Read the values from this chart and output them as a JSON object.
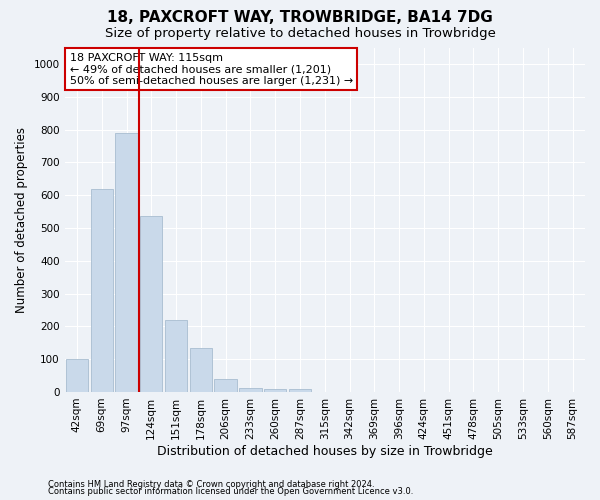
{
  "title1": "18, PAXCROFT WAY, TROWBRIDGE, BA14 7DG",
  "title2": "Size of property relative to detached houses in Trowbridge",
  "xlabel": "Distribution of detached houses by size in Trowbridge",
  "ylabel": "Number of detached properties",
  "bar_color": "#c9d9ea",
  "bar_edge_color": "#a8bdd0",
  "categories": [
    "42sqm",
    "69sqm",
    "97sqm",
    "124sqm",
    "151sqm",
    "178sqm",
    "206sqm",
    "233sqm",
    "260sqm",
    "287sqm",
    "315sqm",
    "342sqm",
    "369sqm",
    "396sqm",
    "424sqm",
    "451sqm",
    "478sqm",
    "505sqm",
    "533sqm",
    "560sqm",
    "587sqm"
  ],
  "values": [
    100,
    620,
    790,
    535,
    220,
    135,
    40,
    13,
    8,
    10,
    0,
    0,
    0,
    0,
    0,
    0,
    0,
    0,
    0,
    0,
    0
  ],
  "vline_x": 2.5,
  "vline_color": "#cc0000",
  "annotation_line1": "18 PAXCROFT WAY: 115sqm",
  "annotation_line2": "← 49% of detached houses are smaller (1,201)",
  "annotation_line3": "50% of semi-detached houses are larger (1,231) →",
  "annotation_box_color": "#ffffff",
  "annotation_box_edge": "#cc0000",
  "ylim": [
    0,
    1050
  ],
  "yticks": [
    0,
    100,
    200,
    300,
    400,
    500,
    600,
    700,
    800,
    900,
    1000
  ],
  "footnote1": "Contains HM Land Registry data © Crown copyright and database right 2024.",
  "footnote2": "Contains public sector information licensed under the Open Government Licence v3.0.",
  "bg_color": "#eef2f7",
  "grid_color": "#ffffff",
  "title1_fontsize": 11,
  "title2_fontsize": 9.5,
  "tick_fontsize": 7.5,
  "ylabel_fontsize": 8.5,
  "xlabel_fontsize": 9,
  "annot_fontsize": 8,
  "footnote_fontsize": 6
}
